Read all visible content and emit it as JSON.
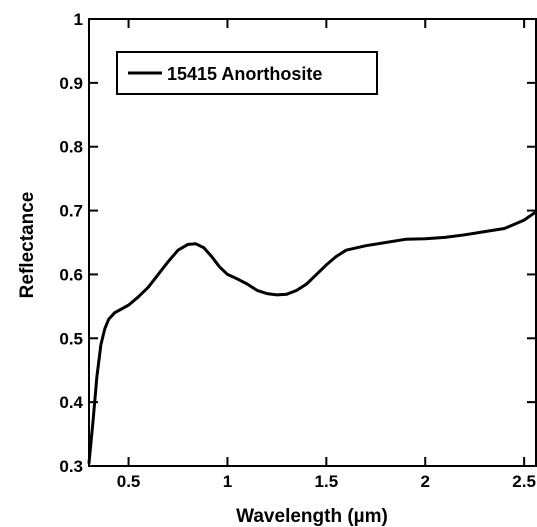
{
  "chart_data": {
    "type": "line",
    "title": "",
    "xlabel": "Wavelength (µm)",
    "ylabel": "Reflectance",
    "xlim": [
      0.3,
      2.56
    ],
    "ylim": [
      0.3,
      1.0
    ],
    "x_ticks": [
      0.5,
      1,
      1.5,
      2,
      2.5
    ],
    "x_tick_labels": [
      "0.5",
      "1",
      "1.5",
      "2",
      "2.5"
    ],
    "y_ticks": [
      0.3,
      0.4,
      0.5,
      0.6,
      0.7,
      0.8,
      0.9,
      1.0
    ],
    "y_tick_labels": [
      "0.3",
      "0.4",
      "0.5",
      "0.6",
      "0.7",
      "0.8",
      "0.9",
      "1"
    ],
    "grid": false,
    "legend_position": "top-left",
    "series": [
      {
        "name": "15415 Anorthosite",
        "color": "#000000",
        "x": [
          0.3,
          0.32,
          0.34,
          0.36,
          0.38,
          0.4,
          0.43,
          0.46,
          0.5,
          0.55,
          0.6,
          0.65,
          0.7,
          0.75,
          0.8,
          0.84,
          0.88,
          0.92,
          0.96,
          1.0,
          1.05,
          1.1,
          1.15,
          1.2,
          1.25,
          1.3,
          1.35,
          1.4,
          1.45,
          1.5,
          1.55,
          1.6,
          1.7,
          1.8,
          1.9,
          2.0,
          2.1,
          2.2,
          2.3,
          2.4,
          2.5,
          2.56
        ],
        "y": [
          0.305,
          0.37,
          0.44,
          0.49,
          0.515,
          0.53,
          0.54,
          0.545,
          0.552,
          0.565,
          0.58,
          0.6,
          0.62,
          0.638,
          0.647,
          0.648,
          0.642,
          0.628,
          0.612,
          0.6,
          0.593,
          0.585,
          0.575,
          0.57,
          0.568,
          0.569,
          0.575,
          0.585,
          0.6,
          0.615,
          0.628,
          0.638,
          0.645,
          0.65,
          0.655,
          0.656,
          0.658,
          0.662,
          0.667,
          0.672,
          0.685,
          0.698
        ]
      }
    ]
  }
}
